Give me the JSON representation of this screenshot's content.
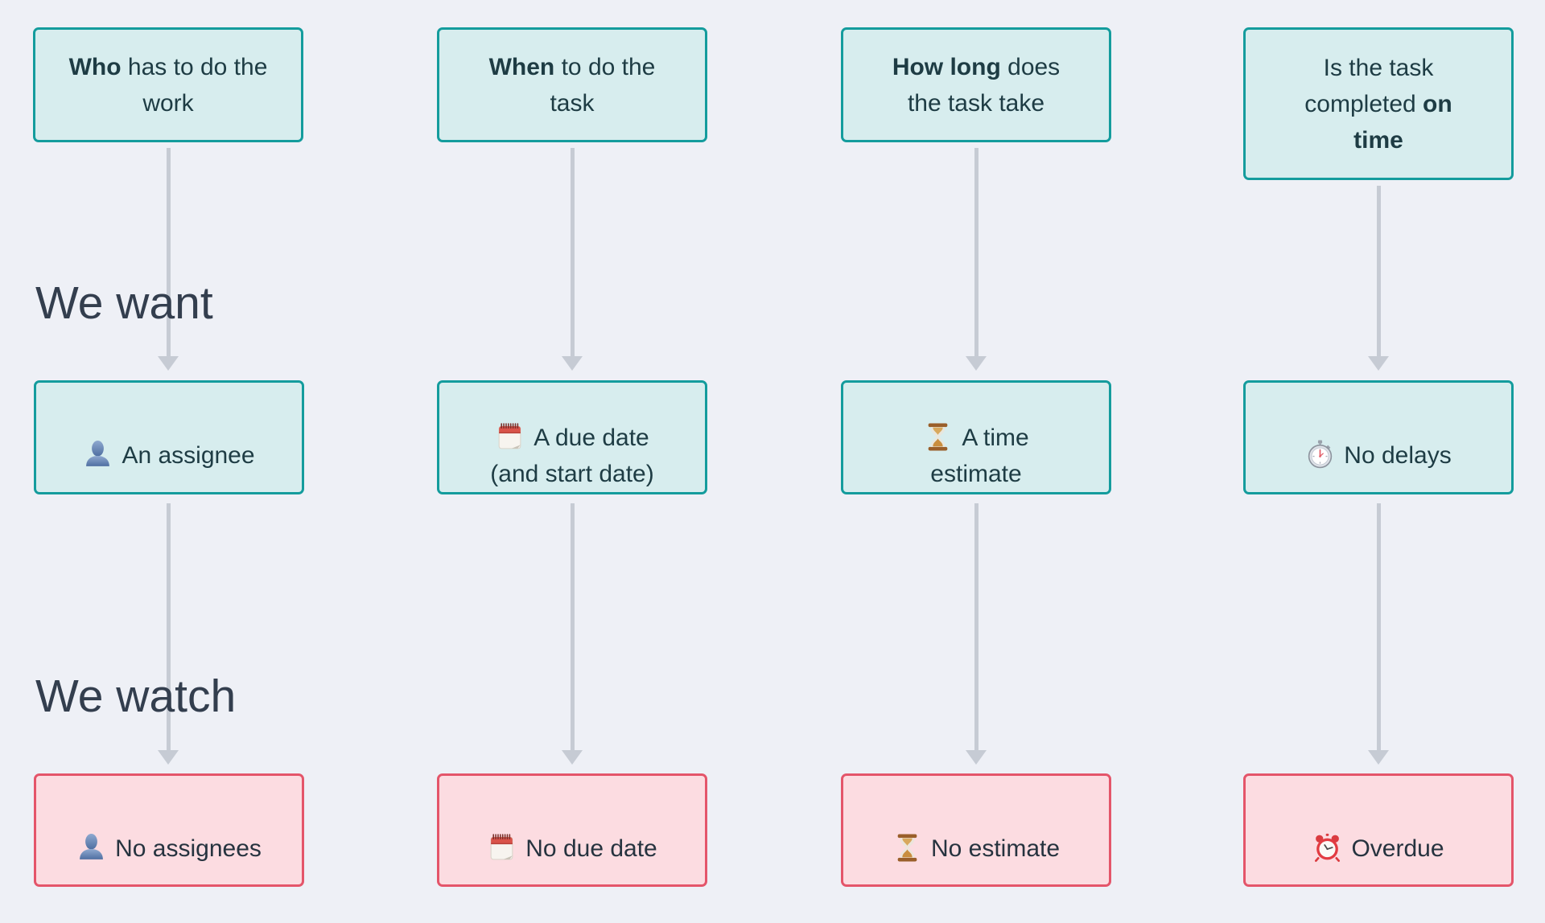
{
  "section_labels": {
    "we_want": "We want",
    "we_watch": "We watch"
  },
  "colors": {
    "background": "#eef0f6",
    "teal_fill": "#d7edee",
    "teal_border": "#149c9d",
    "pink_fill": "#fcdce1",
    "pink_border": "#e4556a",
    "arrow": "#c6cbd4",
    "heading_text": "#333e4e",
    "box_text_teal": "#1e3c44",
    "box_text_pink": "#26333f"
  },
  "columns": [
    {
      "question_segments": [
        {
          "text": "Who",
          "bold": true
        },
        {
          "text": " has to do the\nwork",
          "bold": false
        }
      ],
      "want": {
        "icon": "person-icon",
        "label": "An assignee"
      },
      "watch": {
        "icon": "person-icon",
        "label": "No assignees"
      }
    },
    {
      "question_segments": [
        {
          "text": "When",
          "bold": true
        },
        {
          "text": " to do the\ntask",
          "bold": false
        }
      ],
      "want": {
        "icon": "notepad-icon",
        "label": "A due date\n(and start date)"
      },
      "watch": {
        "icon": "notepad-icon",
        "label": "No due date"
      }
    },
    {
      "question_segments": [
        {
          "text": "How long",
          "bold": true
        },
        {
          "text": " does\nthe task take",
          "bold": false
        }
      ],
      "want": {
        "icon": "hourglass-icon",
        "label": "A time\nestimate"
      },
      "watch": {
        "icon": "hourglass-icon",
        "label": "No estimate"
      }
    },
    {
      "question_segments": [
        {
          "text": "Is the task\ncompleted ",
          "bold": false
        },
        {
          "text": "on\ntime",
          "bold": true
        }
      ],
      "want": {
        "icon": "stopwatch-icon",
        "label": "No delays"
      },
      "watch": {
        "icon": "alarm-clock-icon",
        "label": "Overdue"
      }
    }
  ]
}
